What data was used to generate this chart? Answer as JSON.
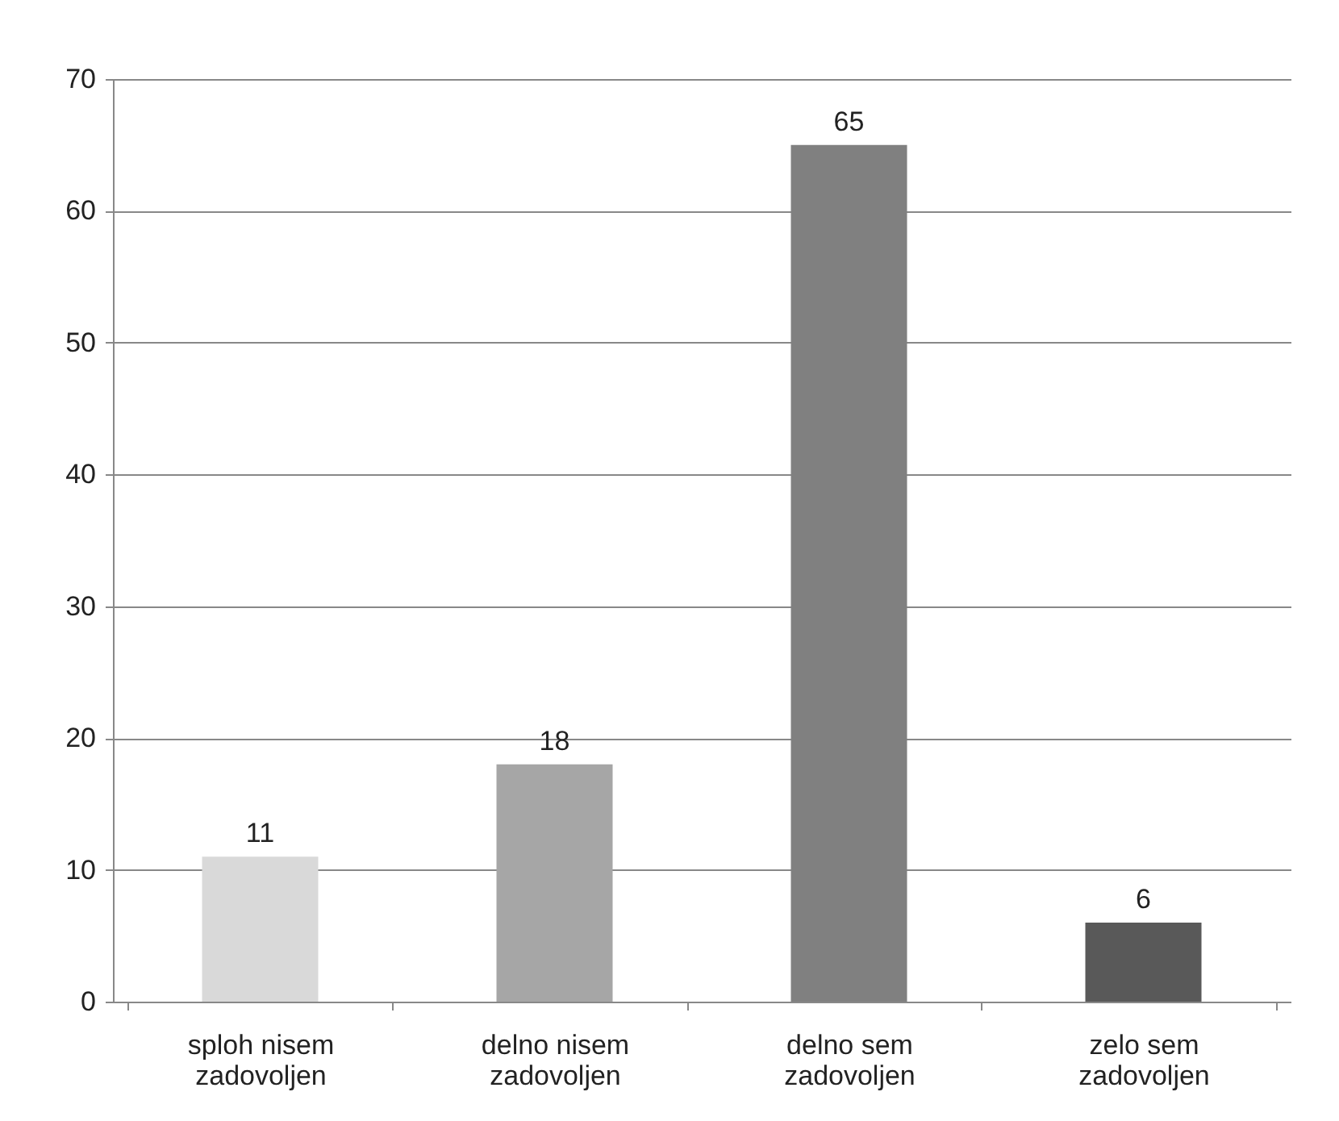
{
  "chart_data": {
    "type": "bar",
    "categories": [
      "sploh nisem zadovoljen",
      "delno nisem zadovoljen",
      "delno sem zadovoljen",
      "zelo sem zadovoljen"
    ],
    "values": [
      11,
      18,
      65,
      6
    ],
    "colors": [
      "#d9d9d9",
      "#a6a6a6",
      "#808080",
      "#595959"
    ],
    "ylim": [
      0,
      70
    ],
    "yticks": [
      0,
      10,
      20,
      30,
      40,
      50,
      60,
      70
    ],
    "grid": "y",
    "data_labels": true
  }
}
